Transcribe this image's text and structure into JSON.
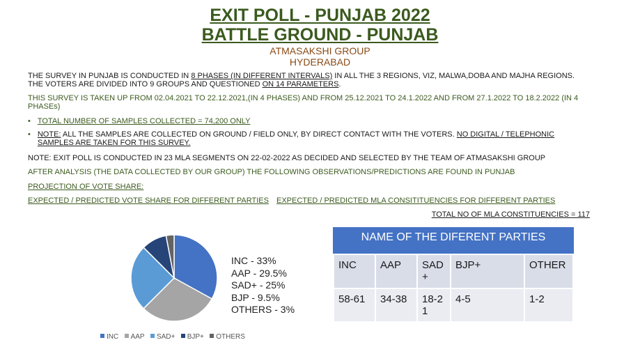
{
  "header": {
    "title1": "EXIT POLL - PUNJAB 2022",
    "title2": "BATTLE GROUND - PUNJAB",
    "org": "ATMASAKSHI GROUP",
    "city": "HYDERABAD"
  },
  "body": {
    "p1_a": "THE SURVEY IN PUNJAB IS CONDUCTED IN ",
    "p1_b": "8 PHASES (IN DIFFERENT INTERVALS)",
    "p1_c": " IN ALL THE 3 REGIONS, VIZ, MALWA,DOBA AND MAJHA REGIONS.",
    "p1_d": "THE VOTERS ARE DIVIDED INTO 9 GROUPS AND QUESTIONED ",
    "p1_e": "ON 14 PARAMETERS",
    "p1_f": ".",
    "p2": "THIS SURVEY IS TAKEN UP FROM 02.04.2021 TO 22.12.2021,(IN 4 PHASES) AND FROM 25.12.2021 TO 24.1.2022 AND FROM 27.1.2022 TO 18.2.2022 (IN 4 PHASEs)",
    "bullet1": "TOTAL NUMBER OF SAMPLES COLLECTED = 74,200 ONLY",
    "bullet2_a": "NOTE:",
    "bullet2_b": " ALL THE SAMPLES ARE COLLECTED ON GROUND / FIELD ONLY, BY DIRECT CONTACT WITH THE VOTERS. ",
    "bullet2_c": "NO DIGITAL / TELEPHONIC SAMPLES ARE TAKEN FOR THIS SURVEY.",
    "note": "NOTE: EXIT POLL IS CONDUCTED IN 23 MLA SEGMENTS ON 22-02-2022 AS DECIDED AND SELECTED BY THE TEAM OF ATMASAKSHI GROUP",
    "after": "AFTER ANALYSIS (THE DATA COLLECTED BY OUR GROUP) THE FOLLOWING OBSERVATIONS/PREDICTIONS ARE FOUND IN PUNJAB",
    "projection": "PROJECTION OF VOTE SHARE:",
    "expected_vote": "EXPECTED / PREDICTED VOTE SHARE FOR DIFFERENT PARTIES",
    "expected_mla": "EXPECTED / PREDICTED MLA CONSITITUENCIES FOR DIFFERENT PARTIES",
    "total_mla": "TOTAL NO OF MLA CONSTITUENCIES = 117"
  },
  "chart_data": {
    "type": "pie",
    "categories": [
      "INC",
      "AAP",
      "SAD+",
      "BJP+",
      "OTHERS"
    ],
    "values": [
      33,
      29.5,
      25,
      9.5,
      3
    ],
    "colors": [
      "#4472c4",
      "#a5a5a5",
      "#5b9bd5",
      "#264478",
      "#636363"
    ],
    "labels": [
      "INC - 33%",
      "AAP - 29.5%",
      "SAD+ - 25%",
      "BJP - 9.5%",
      "OTHERS - 3%"
    ],
    "legend": [
      "INC",
      "AAP",
      "SAD+",
      "BJP+",
      "OTHERS"
    ],
    "legend_position": "bottom"
  },
  "table": {
    "header": "NAME OF THE DIFERENT PARTIES",
    "parties": [
      "INC",
      "AAP",
      "SAD\n+",
      "BJP+",
      "OTHER"
    ],
    "seats": [
      "58-61",
      "34-38",
      "18-2\n1",
      "4-5",
      "1-2"
    ]
  }
}
